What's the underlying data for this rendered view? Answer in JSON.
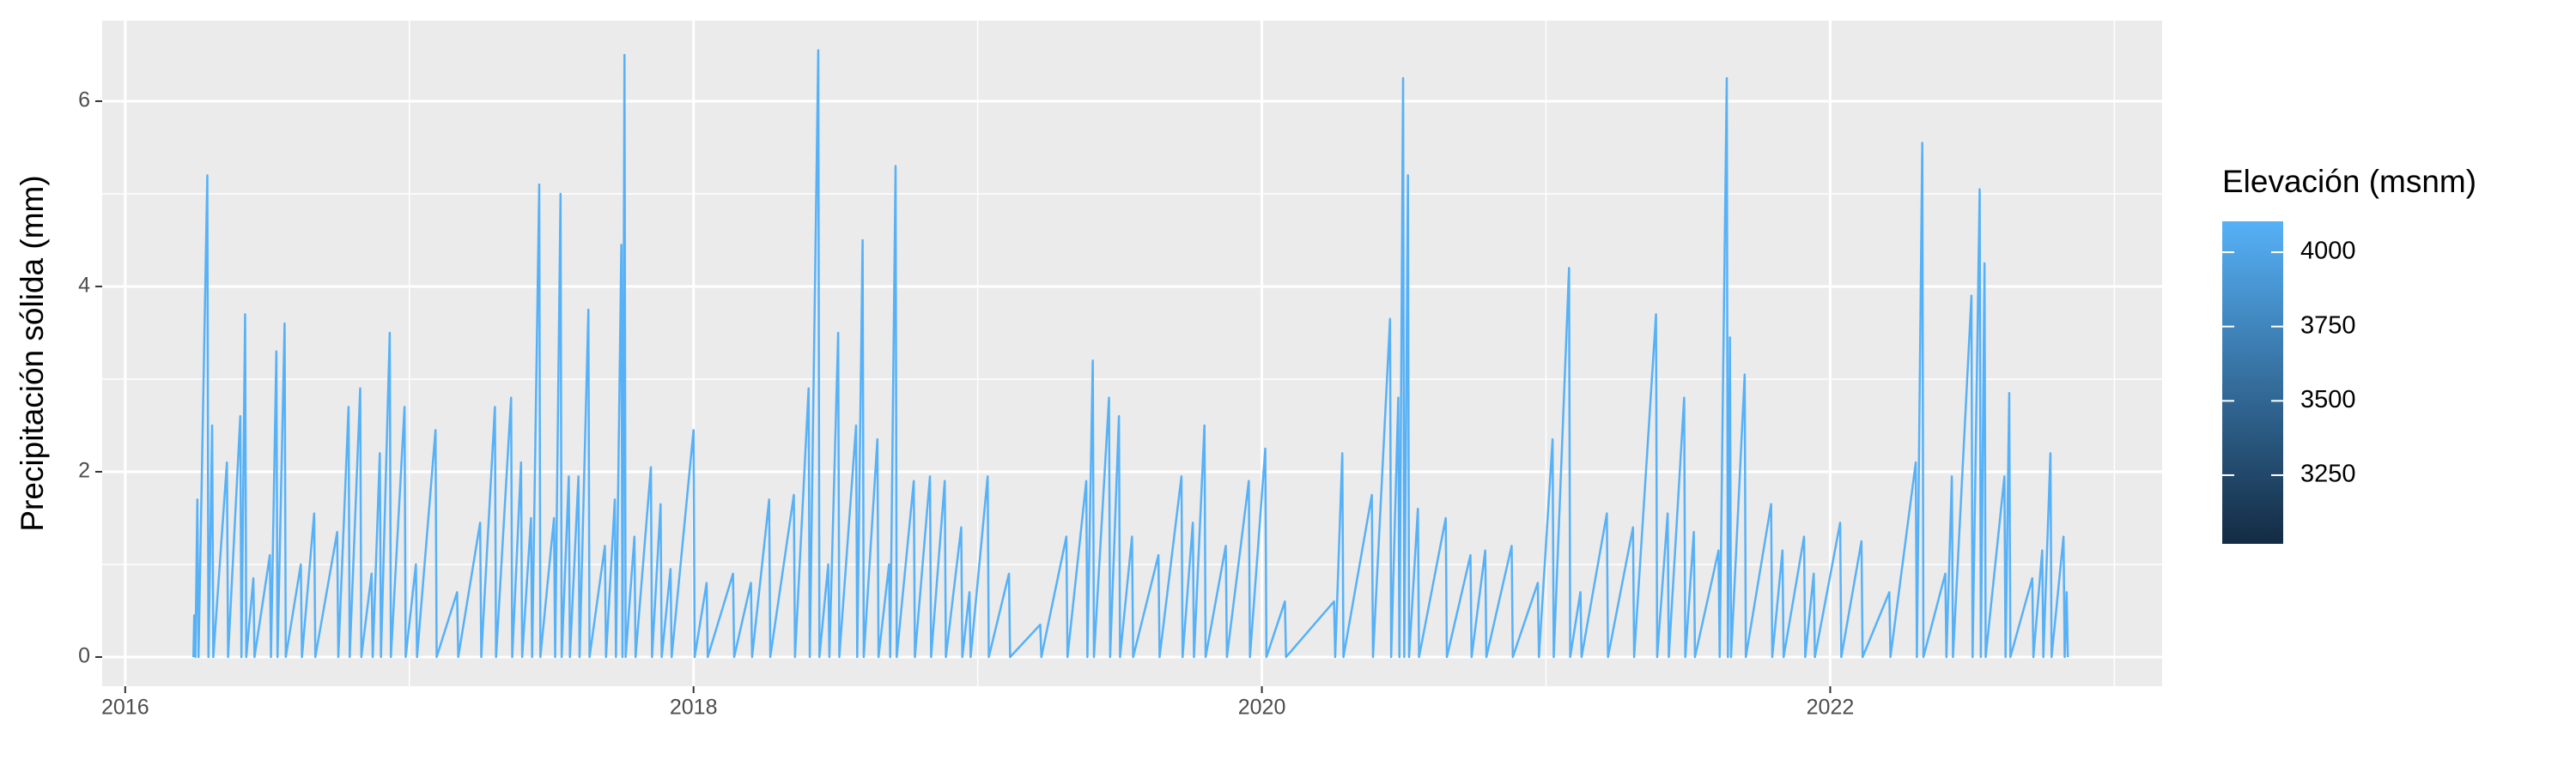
{
  "chart_data": {
    "type": "line",
    "ylabel": "Precipitación sólida (mm)",
    "legend_title": "Elevación (msnm)",
    "xlim": [
      2015.919,
      2023.168
    ],
    "xticks": [
      2016,
      2018,
      2020,
      2022
    ],
    "ylim": [
      -0.315,
      6.87
    ],
    "yticks": [
      0,
      2,
      4,
      6
    ],
    "grid": true,
    "colorbar": {
      "lim": [
        3019,
        4104
      ],
      "ticks": [
        3250,
        3500,
        3750,
        4000
      ],
      "low": "#132B43",
      "high": "#56B1F7"
    },
    "x": [
      2016.24,
      2016.243,
      2016.247,
      2016.254,
      2016.258,
      2016.289,
      2016.293,
      2016.306,
      2016.31,
      2016.358,
      2016.362,
      2016.405,
      2016.409,
      2016.422,
      2016.426,
      2016.451,
      2016.455,
      2016.509,
      2016.513,
      2016.532,
      2016.536,
      2016.561,
      2016.565,
      2016.618,
      2016.622,
      2016.665,
      2016.669,
      2016.746,
      2016.75,
      2016.786,
      2016.79,
      2016.827,
      2016.831,
      2016.867,
      2016.871,
      2016.896,
      2016.9,
      2016.931,
      2016.935,
      2016.983,
      2016.987,
      2017.023,
      2017.027,
      2017.092,
      2017.096,
      2017.168,
      2017.172,
      2017.249,
      2017.253,
      2017.301,
      2017.305,
      2017.358,
      2017.362,
      2017.393,
      2017.397,
      2017.428,
      2017.432,
      2017.457,
      2017.461,
      2017.509,
      2017.513,
      2017.532,
      2017.536,
      2017.561,
      2017.565,
      2017.595,
      2017.599,
      2017.63,
      2017.634,
      2017.688,
      2017.692,
      2017.723,
      2017.727,
      2017.746,
      2017.75,
      2017.757,
      2017.761,
      2017.792,
      2017.796,
      2017.85,
      2017.854,
      2017.884,
      2017.888,
      2017.919,
      2017.923,
      2018.0,
      2018.004,
      2018.046,
      2018.05,
      2018.139,
      2018.143,
      2018.202,
      2018.206,
      2018.266,
      2018.27,
      2018.353,
      2018.357,
      2018.405,
      2018.409,
      2018.439,
      2018.443,
      2018.474,
      2018.478,
      2018.509,
      2018.513,
      2018.572,
      2018.576,
      2018.595,
      2018.599,
      2018.647,
      2018.651,
      2018.688,
      2018.692,
      2018.711,
      2018.715,
      2018.775,
      2018.779,
      2018.832,
      2018.836,
      2018.884,
      2018.888,
      2018.942,
      2018.946,
      2018.971,
      2018.975,
      2019.035,
      2019.039,
      2019.11,
      2019.114,
      2019.22,
      2019.224,
      2019.312,
      2019.316,
      2019.382,
      2019.386,
      2019.405,
      2019.409,
      2019.462,
      2019.466,
      2019.497,
      2019.501,
      2019.543,
      2019.547,
      2019.636,
      2019.64,
      2019.717,
      2019.721,
      2019.757,
      2019.761,
      2019.798,
      2019.802,
      2019.873,
      2019.877,
      2019.954,
      2019.958,
      2020.012,
      2020.016,
      2020.081,
      2020.085,
      2020.254,
      2020.258,
      2020.283,
      2020.287,
      2020.387,
      2020.391,
      2020.451,
      2020.455,
      2020.48,
      2020.484,
      2020.497,
      2020.501,
      2020.514,
      2020.518,
      2020.549,
      2020.553,
      2020.647,
      2020.651,
      2020.734,
      2020.738,
      2020.786,
      2020.79,
      2020.879,
      2020.883,
      2020.971,
      2020.975,
      2021.023,
      2021.027,
      2021.081,
      2021.085,
      2021.121,
      2021.125,
      2021.214,
      2021.218,
      2021.306,
      2021.31,
      2021.387,
      2021.391,
      2021.428,
      2021.432,
      2021.486,
      2021.49,
      2021.52,
      2021.524,
      2021.607,
      2021.611,
      2021.636,
      2021.64,
      2021.647,
      2021.651,
      2021.699,
      2021.703,
      2021.792,
      2021.796,
      2021.832,
      2021.836,
      2021.908,
      2021.912,
      2021.942,
      2021.946,
      2022.035,
      2022.039,
      2022.11,
      2022.114,
      2022.208,
      2022.212,
      2022.301,
      2022.305,
      2022.324,
      2022.328,
      2022.405,
      2022.409,
      2022.428,
      2022.432,
      2022.497,
      2022.501,
      2022.526,
      2022.53,
      2022.543,
      2022.547,
      2022.613,
      2022.617,
      2022.63,
      2022.634,
      2022.711,
      2022.715,
      2022.746,
      2022.75,
      2022.775,
      2022.779,
      2022.821,
      2022.825,
      2022.832,
      2022.836
    ],
    "series": [
      {
        "name": "4000",
        "color": "#56B1F7",
        "values": [
          0,
          0.45,
          0,
          1.7,
          0,
          5.2,
          0,
          2.5,
          0,
          2.1,
          0,
          2.6,
          0,
          3.7,
          0,
          0.85,
          0,
          1.1,
          0,
          3.3,
          0,
          3.6,
          0,
          1.0,
          0,
          1.55,
          0,
          1.35,
          0,
          2.7,
          0,
          2.9,
          0,
          0.9,
          0,
          2.2,
          0,
          3.5,
          0,
          2.7,
          0,
          1.0,
          0,
          2.45,
          0,
          0.7,
          0,
          1.45,
          0,
          2.7,
          0,
          2.8,
          0,
          2.1,
          0,
          1.5,
          0,
          5.1,
          0,
          1.5,
          0,
          5.0,
          0,
          1.95,
          0,
          1.95,
          0,
          3.75,
          0,
          1.2,
          0,
          1.7,
          0,
          4.45,
          0,
          6.5,
          0,
          1.3,
          0,
          2.05,
          0,
          1.65,
          0,
          0.95,
          0,
          2.45,
          0,
          0.8,
          0,
          0.9,
          0,
          0.8,
          0,
          1.7,
          0,
          1.75,
          0,
          2.9,
          0,
          6.55,
          0,
          1.0,
          0,
          3.5,
          0,
          2.5,
          0,
          4.5,
          0,
          2.35,
          0,
          1.0,
          0,
          5.3,
          0,
          1.9,
          0,
          1.95,
          0,
          1.9,
          0,
          1.4,
          0,
          0.7,
          0,
          1.95,
          0,
          0.9,
          0,
          0.35,
          0,
          1.3,
          0,
          1.9,
          0,
          3.2,
          0,
          2.8,
          0,
          2.6,
          0,
          1.3,
          0,
          1.1,
          0,
          1.95,
          0,
          1.45,
          0,
          2.5,
          0,
          1.2,
          0,
          1.9,
          0,
          2.25,
          0,
          0.6,
          0,
          0.6,
          0,
          2.2,
          0,
          1.75,
          0,
          3.65,
          0,
          2.8,
          0,
          6.25,
          0,
          5.2,
          0,
          1.6,
          0,
          1.5,
          0,
          1.1,
          0,
          1.15,
          0,
          1.2,
          0,
          0.8,
          0,
          2.35,
          0,
          4.2,
          0,
          0.7,
          0,
          1.55,
          0,
          1.4,
          0,
          3.7,
          0,
          1.55,
          0,
          2.8,
          0,
          1.35,
          0,
          1.15,
          0,
          6.25,
          0,
          3.45,
          0,
          3.05,
          0,
          1.65,
          0,
          1.15,
          0,
          1.3,
          0,
          0.9,
          0,
          1.45,
          0,
          1.25,
          0,
          0.7,
          0,
          2.1,
          0,
          5.55,
          0,
          0.9,
          0,
          1.95,
          0,
          3.9,
          0,
          5.05,
          0,
          4.25,
          0,
          1.95,
          0,
          2.85,
          0,
          0.85,
          0,
          1.15,
          0,
          2.2,
          0,
          1.3,
          0,
          0.7,
          0
        ]
      }
    ]
  }
}
